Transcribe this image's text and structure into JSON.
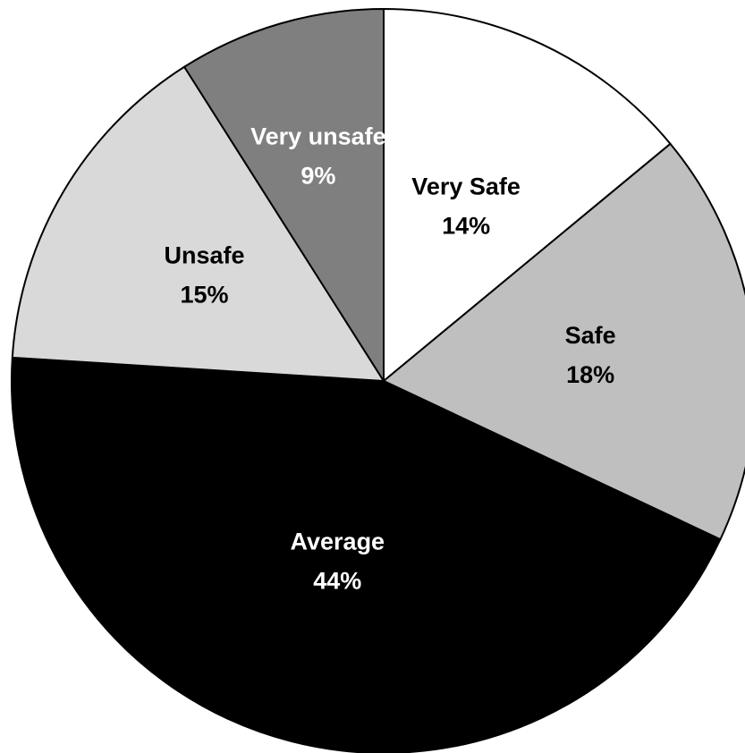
{
  "chart_data": {
    "type": "pie",
    "title": "",
    "start": "12 o'clock",
    "direction": "clockwise",
    "legend": "none",
    "slices": [
      {
        "name": "Very Safe",
        "value": 14,
        "label": "14%",
        "color": "#ffffff",
        "text_color": "#000000"
      },
      {
        "name": "Safe",
        "value": 18,
        "label": "18%",
        "color": "#bfbfbf",
        "text_color": "#000000"
      },
      {
        "name": "Average",
        "value": 44,
        "label": "44%",
        "color": "#000000",
        "text_color": "#ffffff"
      },
      {
        "name": "Unsafe",
        "value": 15,
        "label": "15%",
        "color": "#d9d9d9",
        "text_color": "#000000"
      },
      {
        "name": "Very unsafe",
        "value": 9,
        "label": "9%",
        "color": "#7f7f7f",
        "text_color": "#ffffff"
      }
    ]
  }
}
